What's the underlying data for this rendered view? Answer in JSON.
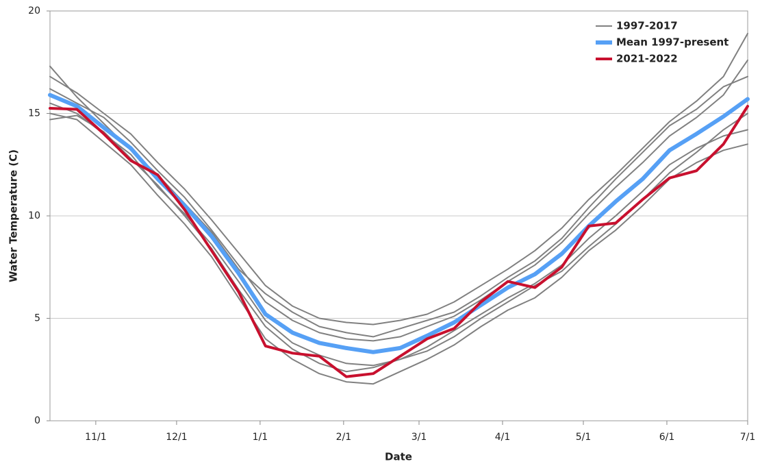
{
  "chart_data": {
    "type": "line",
    "x_label": "Date",
    "y_label": "Water Temperature (C)",
    "x": [
      0,
      10,
      20,
      30,
      40,
      50,
      60,
      70,
      80,
      90,
      100,
      110,
      120,
      130,
      140,
      150,
      160,
      170,
      180,
      190,
      200,
      210,
      220,
      230,
      240,
      250,
      259
    ],
    "xlim": [
      0,
      259
    ],
    "xticks": [
      {
        "value": 17,
        "label": "11/1"
      },
      {
        "value": 47,
        "label": "12/1"
      },
      {
        "value": 78,
        "label": "1/1"
      },
      {
        "value": 109,
        "label": "2/1"
      },
      {
        "value": 137,
        "label": "3/1"
      },
      {
        "value": 168,
        "label": "4/1"
      },
      {
        "value": 198,
        "label": "5/1"
      },
      {
        "value": 229,
        "label": "6/1"
      },
      {
        "value": 259,
        "label": "7/1"
      }
    ],
    "ylim": [
      0,
      20
    ],
    "yticks": [
      0,
      5,
      10,
      15,
      20
    ],
    "grid": true,
    "legend": "top-right",
    "series": [
      {
        "name": "1997-2017",
        "color": "#808080",
        "lines": [
          [
            16.8,
            16.0,
            15.0,
            14.0,
            12.6,
            11.3,
            9.8,
            8.2,
            6.6,
            5.6,
            5.0,
            4.8,
            4.7,
            4.9,
            5.2,
            5.8,
            6.6,
            7.4,
            8.3,
            9.4,
            10.8,
            12.0,
            13.3,
            14.6,
            15.6,
            16.8,
            18.9
          ],
          [
            15.0,
            14.7,
            13.6,
            12.5,
            11.0,
            9.6,
            8.0,
            6.0,
            4.0,
            3.0,
            2.3,
            1.9,
            1.8,
            2.4,
            3.0,
            3.7,
            4.6,
            5.4,
            6.0,
            7.0,
            8.3,
            9.3,
            10.5,
            11.8,
            12.6,
            13.2,
            13.5
          ],
          [
            16.2,
            15.5,
            14.8,
            13.6,
            12.2,
            10.9,
            9.3,
            7.6,
            5.8,
            4.9,
            4.3,
            4.0,
            3.9,
            4.1,
            4.6,
            5.1,
            5.9,
            6.8,
            7.6,
            8.7,
            10.1,
            11.4,
            12.6,
            13.9,
            14.8,
            15.9,
            17.6
          ],
          [
            15.5,
            15.0,
            14.0,
            13.0,
            11.4,
            10.1,
            8.6,
            6.8,
            4.9,
            3.8,
            3.2,
            2.8,
            2.7,
            3.0,
            3.6,
            4.4,
            5.2,
            6.0,
            6.7,
            7.6,
            8.9,
            10.0,
            11.2,
            12.5,
            13.3,
            13.9,
            14.2
          ],
          [
            17.3,
            15.8,
            14.5,
            13.2,
            12.0,
            10.6,
            9.2,
            7.4,
            6.2,
            5.3,
            4.6,
            4.3,
            4.1,
            4.5,
            4.9,
            5.3,
            6.1,
            7.0,
            7.8,
            8.9,
            10.4,
            11.8,
            13.1,
            14.4,
            15.2,
            16.3,
            16.8
          ],
          [
            14.7,
            14.9,
            14.1,
            12.8,
            11.5,
            10.0,
            8.4,
            6.4,
            4.6,
            3.5,
            2.8,
            2.4,
            2.6,
            3.0,
            3.4,
            4.1,
            5.0,
            5.8,
            6.6,
            7.3,
            8.5,
            9.6,
            10.8,
            12.1,
            13.1,
            14.2,
            15.0
          ]
        ]
      },
      {
        "name": "Mean 1997-present",
        "color": "#56a0f5",
        "values": [
          15.9,
          15.35,
          14.3,
          13.3,
          11.8,
          10.5,
          9.0,
          7.2,
          5.2,
          4.3,
          3.8,
          3.55,
          3.35,
          3.55,
          4.15,
          4.8,
          5.65,
          6.5,
          7.15,
          8.15,
          9.5,
          10.7,
          11.8,
          13.2,
          14.0,
          14.85,
          15.7
        ]
      },
      {
        "name": "2021-2022",
        "color": "#c8102e",
        "values": [
          15.25,
          15.2,
          14.0,
          12.7,
          12.0,
          10.3,
          8.3,
          6.3,
          3.65,
          3.3,
          3.15,
          2.15,
          2.3,
          3.15,
          4.0,
          4.5,
          5.8,
          6.8,
          6.5,
          7.5,
          9.5,
          9.65,
          10.8,
          11.85,
          12.2,
          13.5,
          15.35
        ]
      }
    ]
  }
}
